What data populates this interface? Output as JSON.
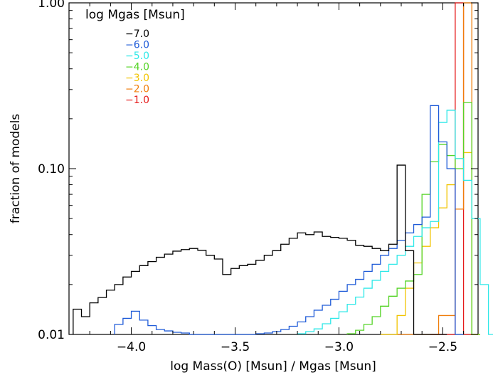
{
  "chart_data": {
    "type": "line",
    "xlabel": "log Mass(O) [Msun] / Mgas [Msun]",
    "ylabel": "fraction of models",
    "xlim": [
      -4.3,
      -2.33
    ],
    "ylim": [
      0.01,
      1.0
    ],
    "yscale": "log",
    "xticks": [
      -4.0,
      -3.5,
      -3.0,
      -2.5
    ],
    "xtick_labels": [
      "−4.0",
      "−3.5",
      "−3.0",
      "−2.5"
    ],
    "yticks": [
      0.01,
      0.1,
      1.0
    ],
    "ytick_labels": [
      "0.01",
      "0.10",
      "1.00"
    ],
    "legend": {
      "title": "log Mgas [Msun]",
      "position": "top-left",
      "entries": [
        "−7.0",
        "−6.0",
        "−5.0",
        "−4.0",
        "−3.0",
        "−2.0",
        "−1.0"
      ]
    },
    "bin_edges_range": [
      -4.3,
      -2.46
    ],
    "bin_width": 0.04,
    "series": [
      {
        "name": "−1.0",
        "color": "#000000",
        "x_start": -4.28,
        "values": [
          0.0142,
          0.0128,
          0.0155,
          0.0167,
          0.0185,
          0.02,
          0.0222,
          0.024,
          0.026,
          0.0275,
          0.0292,
          0.0305,
          0.0318,
          0.0325,
          0.033,
          0.0322,
          0.03,
          0.0285,
          0.023,
          0.025,
          0.026,
          0.0265,
          0.028,
          0.03,
          0.032,
          0.035,
          0.038,
          0.041,
          0.04,
          0.0415,
          0.039,
          0.0385,
          0.038,
          0.037,
          0.0345,
          0.034,
          0.033,
          0.032,
          0.035,
          0.105,
          0.032,
          0.01,
          0.01,
          0.01,
          0.01
        ]
      },
      {
        "name": "−2.0",
        "color": "#1f5bd8",
        "x_start": -4.08,
        "values": [
          0.0115,
          0.0125,
          0.0138,
          0.0122,
          0.0113,
          0.0107,
          0.0105,
          0.0103,
          0.0102,
          0.01,
          0.01,
          0.01,
          0.01,
          0.01,
          0.01,
          0.01,
          0.01,
          0.0101,
          0.0102,
          0.0104,
          0.0107,
          0.0112,
          0.0119,
          0.0128,
          0.014,
          0.015,
          0.0163,
          0.0182,
          0.02,
          0.0215,
          0.024,
          0.0265,
          0.03,
          0.033,
          0.037,
          0.041,
          0.046,
          0.051,
          0.24,
          0.145,
          0.1,
          0.01
        ]
      },
      {
        "name": "−3.0",
        "color": "#2ee8e8",
        "x_start": -3.2,
        "values": [
          0.0101,
          0.0104,
          0.0108,
          0.0116,
          0.0125,
          0.0137,
          0.0152,
          0.0168,
          0.019,
          0.0212,
          0.024,
          0.0265,
          0.03,
          0.034,
          0.039,
          0.044,
          0.048,
          0.19,
          0.225,
          0.115,
          0.085,
          0.05,
          0.02,
          0.01
        ]
      },
      {
        "name": "−4.0",
        "color": "#55d427",
        "x_start": -2.96,
        "values": [
          0.0101,
          0.0106,
          0.0115,
          0.0128,
          0.0148,
          0.017,
          0.019,
          0.021,
          0.023,
          0.07,
          0.11,
          0.14,
          0.12,
          0.1,
          0.25,
          0.01
        ]
      },
      {
        "name": "−5.0",
        "color": "#f2c400",
        "x_start": -2.8,
        "values": [
          0.01,
          0.01,
          0.013,
          0.019,
          0.027,
          0.034,
          0.044,
          0.058,
          0.08,
          0.115,
          0.125,
          0.01
        ]
      },
      {
        "name": "−6.0",
        "color": "#f07d0a",
        "x_start": -2.72,
        "values": [
          0.01,
          0.01,
          0.01,
          0.01,
          0.01,
          0.013,
          0.013,
          0.057,
          1.0,
          0.01
        ]
      },
      {
        "name": "−7.0",
        "color": "#e51a1a",
        "x_start": -2.56,
        "values": [
          0.01,
          0.01,
          0.01,
          0.9999,
          0.01
        ]
      }
    ]
  }
}
